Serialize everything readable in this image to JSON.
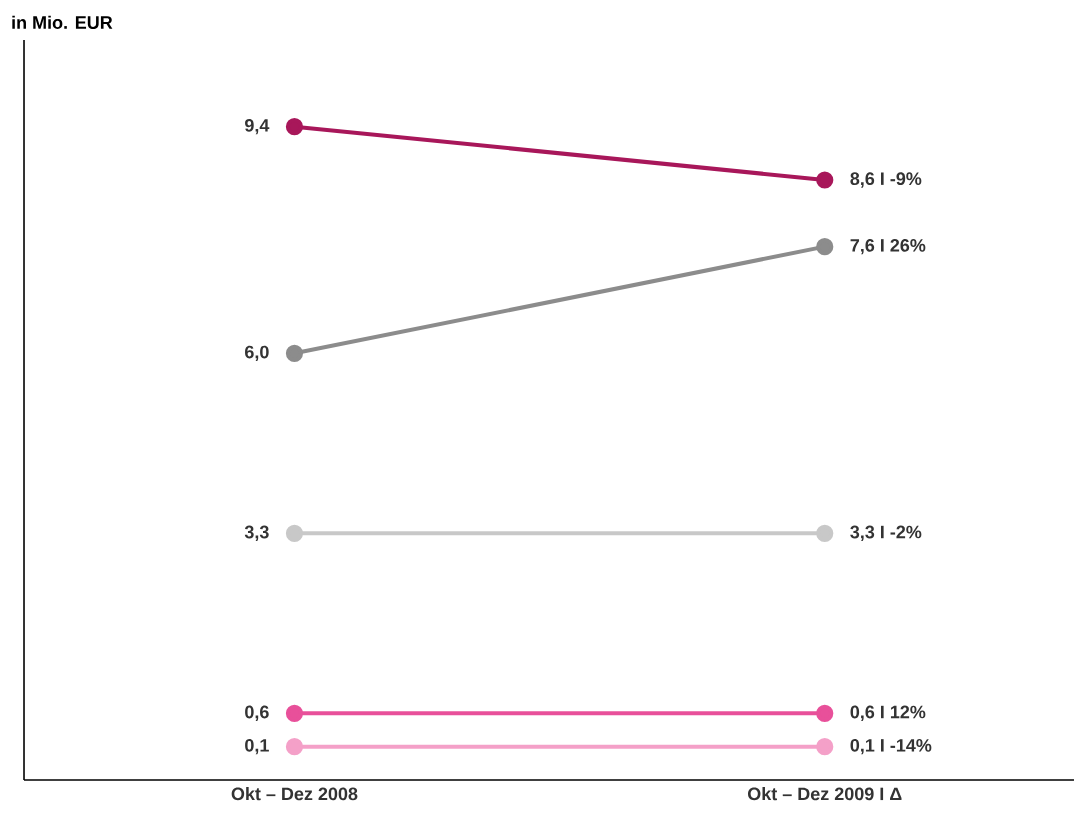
{
  "chart_data": {
    "type": "line",
    "ylabel": "in Mio. EUR",
    "categories": [
      "Okt – Dez 2008",
      "Okt – Dez 2009 I Δ"
    ],
    "ylim": [
      -0.4,
      10.7
    ],
    "tick_labels": "x",
    "marker": "circle",
    "line_style": "solid",
    "series": [
      {
        "color": "#a8175a",
        "values": [
          9.4,
          8.6
        ],
        "value_labels": [
          "9,4",
          "8,6 I -9%"
        ]
      },
      {
        "color": "#8c8c8c",
        "values": [
          6.0,
          7.6
        ],
        "value_labels": [
          "6,0",
          "7,6 I 26%"
        ]
      },
      {
        "color": "#c8c8c8",
        "values": [
          3.3,
          3.3
        ],
        "value_labels": [
          "3,3",
          "3,3 I -2%"
        ]
      },
      {
        "color": "#e8509a",
        "values": [
          0.6,
          0.6
        ],
        "value_labels": [
          "0,6",
          "0,6 I 12%"
        ]
      },
      {
        "color": "#f4a0c8",
        "values": [
          0.1,
          0.1
        ],
        "value_labels": [
          "0,1",
          "0,1 I -14%"
        ]
      }
    ]
  }
}
